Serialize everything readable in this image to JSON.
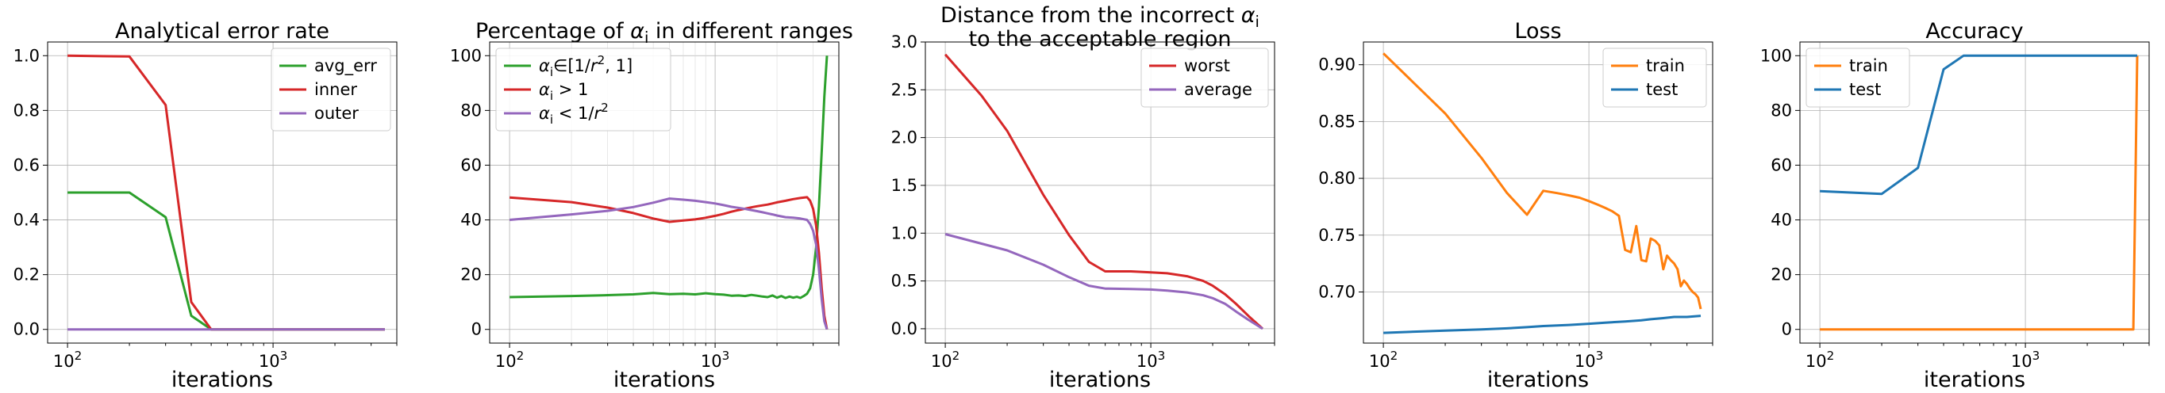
{
  "chart_data": [
    {
      "type": "line",
      "title": "Analytical error rate",
      "xlabel": "iterations",
      "ylabel": "",
      "xscale": "log",
      "xlim": [
        80,
        4000
      ],
      "ylim": [
        -0.05,
        1.05
      ],
      "yticks": [
        0.0,
        0.2,
        0.4,
        0.6,
        0.8,
        1.0
      ],
      "ytick_labels": [
        "0.0",
        "0.2",
        "0.4",
        "0.6",
        "0.8",
        "1.0"
      ],
      "xticks": [
        {
          "value": 100,
          "base": "10",
          "exp": "2"
        },
        {
          "value": 1000,
          "base": "10",
          "exp": "3"
        }
      ],
      "grid": true,
      "legend": {
        "placement": "top-right"
      },
      "series": [
        {
          "name": "avg_err",
          "color": "#2ca02c",
          "x": [
            100,
            200,
            300,
            400,
            500,
            3500
          ],
          "y": [
            0.5,
            0.5,
            0.41,
            0.05,
            0.0,
            0.0
          ]
        },
        {
          "name": "inner",
          "color": "#d62728",
          "x": [
            100,
            200,
            300,
            400,
            500,
            3500
          ],
          "y": [
            1.0,
            0.997,
            0.82,
            0.1,
            0.0,
            0.0
          ]
        },
        {
          "name": "outer",
          "color": "#9467bd",
          "x": [
            100,
            3500
          ],
          "y": [
            0.0,
            0.0
          ]
        }
      ]
    },
    {
      "type": "line",
      "title": "Percentage of αi in different ranges",
      "xlabel": "iterations",
      "ylabel": "",
      "xscale": "log",
      "xlim": [
        80,
        4000
      ],
      "ylim": [
        -5,
        105
      ],
      "yticks": [
        0,
        20,
        40,
        60,
        80,
        100
      ],
      "ytick_labels": [
        "0",
        "20",
        "40",
        "60",
        "80",
        "100"
      ],
      "xticks": [
        {
          "value": 100,
          "base": "10",
          "exp": "2"
        },
        {
          "value": 1000,
          "base": "10",
          "exp": "3"
        }
      ],
      "grid": true,
      "legend": {
        "placement": "top-left"
      },
      "series": [
        {
          "name": "αi∈[1/r², 1]",
          "color": "#2ca02c",
          "x": [
            100,
            200,
            300,
            400,
            500,
            600,
            700,
            800,
            900,
            1000,
            1100,
            1200,
            1300,
            1400,
            1500,
            1600,
            1700,
            1800,
            1900,
            2000,
            2100,
            2200,
            2300,
            2400,
            2500,
            2600,
            2700,
            2800,
            2900,
            3000,
            3100,
            3200,
            3300,
            3400,
            3500
          ],
          "y": [
            11.8,
            12.2,
            12.5,
            12.8,
            13.3,
            12.9,
            13.0,
            12.8,
            13.2,
            12.9,
            12.7,
            12.3,
            12.4,
            12.2,
            12.6,
            12.3,
            12.0,
            11.8,
            12.4,
            11.6,
            12.2,
            11.5,
            12.0,
            11.6,
            11.9,
            11.5,
            12.2,
            13.0,
            15.0,
            20.0,
            30.0,
            45.0,
            65.0,
            85.0,
            100.0
          ]
        },
        {
          "name": "αi > 1",
          "color": "#d62728",
          "x": [
            100,
            200,
            300,
            400,
            500,
            600,
            700,
            800,
            900,
            1000,
            1100,
            1200,
            1300,
            1400,
            1500,
            1600,
            1700,
            1800,
            1900,
            2000,
            2200,
            2400,
            2600,
            2800,
            2900,
            3000,
            3100,
            3200,
            3300,
            3400,
            3500
          ],
          "y": [
            48.2,
            46.5,
            44.5,
            42.5,
            40.5,
            39.3,
            39.8,
            40.2,
            40.8,
            41.5,
            42.2,
            43.0,
            43.6,
            44.1,
            44.6,
            45.0,
            45.3,
            45.6,
            46.0,
            46.4,
            47.0,
            47.6,
            48.0,
            48.3,
            47.0,
            44.0,
            38.0,
            28.0,
            15.0,
            5.0,
            0.0
          ]
        },
        {
          "name": "αi < 1/r²",
          "color": "#9467bd",
          "x": [
            100,
            200,
            300,
            400,
            500,
            600,
            700,
            800,
            900,
            1000,
            1100,
            1200,
            1300,
            1400,
            1500,
            1600,
            1700,
            1800,
            1900,
            2000,
            2200,
            2400,
            2600,
            2800,
            2900,
            3000,
            3100,
            3200,
            3300,
            3400,
            3500
          ],
          "y": [
            40.0,
            42.0,
            43.3,
            44.7,
            46.3,
            47.8,
            47.4,
            47.0,
            46.5,
            46.0,
            45.4,
            44.8,
            44.4,
            44.0,
            43.6,
            43.2,
            42.8,
            42.4,
            42.0,
            41.6,
            41.0,
            40.8,
            40.5,
            40.0,
            38.5,
            36.0,
            31.0,
            22.0,
            11.0,
            3.0,
            0.0
          ]
        }
      ]
    },
    {
      "type": "line",
      "title": "Distance from the incorrect αi to the acceptable region",
      "title_lines": [
        "Distance from the incorrect ",
        "to the acceptable region"
      ],
      "xlabel": "iterations",
      "ylabel": "",
      "xscale": "log",
      "xlim": [
        80,
        4000
      ],
      "ylim": [
        -0.15,
        3.0
      ],
      "yticks": [
        0.0,
        0.5,
        1.0,
        1.5,
        2.0,
        2.5,
        3.0
      ],
      "ytick_labels": [
        "0.0",
        "0.5",
        "1.0",
        "1.5",
        "2.0",
        "2.5",
        "3.0"
      ],
      "xticks": [
        {
          "value": 100,
          "base": "10",
          "exp": "2"
        },
        {
          "value": 1000,
          "base": "10",
          "exp": "3"
        }
      ],
      "grid": true,
      "legend": {
        "placement": "top-right"
      },
      "series": [
        {
          "name": "worst",
          "color": "#d62728",
          "x": [
            100,
            150,
            200,
            300,
            400,
            500,
            600,
            800,
            1000,
            1200,
            1500,
            1800,
            2000,
            2300,
            2600,
            3000,
            3500
          ],
          "y": [
            2.87,
            2.44,
            2.07,
            1.4,
            0.98,
            0.7,
            0.6,
            0.6,
            0.59,
            0.58,
            0.55,
            0.5,
            0.45,
            0.36,
            0.26,
            0.13,
            0.0
          ]
        },
        {
          "name": "average",
          "color": "#9467bd",
          "x": [
            100,
            200,
            300,
            400,
            500,
            600,
            800,
            1000,
            1200,
            1500,
            1800,
            2000,
            2300,
            2600,
            3000,
            3500
          ],
          "y": [
            0.99,
            0.82,
            0.67,
            0.54,
            0.45,
            0.42,
            0.415,
            0.41,
            0.4,
            0.38,
            0.35,
            0.32,
            0.26,
            0.18,
            0.09,
            0.0
          ]
        }
      ]
    },
    {
      "type": "line",
      "title": "Loss",
      "xlabel": "iterations",
      "ylabel": "",
      "xscale": "log",
      "xlim": [
        80,
        4000
      ],
      "ylim": [
        0.655,
        0.92
      ],
      "yticks": [
        0.7,
        0.75,
        0.8,
        0.85,
        0.9
      ],
      "ytick_labels": [
        "0.70",
        "0.75",
        "0.80",
        "0.85",
        "0.90"
      ],
      "xticks": [
        {
          "value": 100,
          "base": "10",
          "exp": "2"
        },
        {
          "value": 1000,
          "base": "10",
          "exp": "3"
        }
      ],
      "grid": true,
      "legend": {
        "placement": "top-right"
      },
      "series": [
        {
          "name": "train",
          "color": "#ff7f0e",
          "x": [
            100,
            200,
            300,
            400,
            500,
            600,
            700,
            800,
            900,
            1000,
            1100,
            1200,
            1300,
            1400,
            1500,
            1600,
            1700,
            1800,
            1900,
            2000,
            2100,
            2200,
            2300,
            2400,
            2500,
            2600,
            2700,
            2800,
            2900,
            3000,
            3100,
            3200,
            3300,
            3400,
            3500
          ],
          "y": [
            0.91,
            0.857,
            0.818,
            0.787,
            0.768,
            0.789,
            0.787,
            0.785,
            0.783,
            0.78,
            0.777,
            0.774,
            0.771,
            0.767,
            0.737,
            0.735,
            0.758,
            0.728,
            0.727,
            0.747,
            0.745,
            0.741,
            0.72,
            0.732,
            0.728,
            0.725,
            0.72,
            0.705,
            0.71,
            0.707,
            0.703,
            0.7,
            0.698,
            0.695,
            0.685
          ]
        },
        {
          "name": "test",
          "color": "#1f77b4",
          "x": [
            100,
            200,
            300,
            400,
            500,
            600,
            800,
            1000,
            1200,
            1500,
            1800,
            2000,
            2300,
            2600,
            3000,
            3500
          ],
          "y": [
            0.664,
            0.666,
            0.667,
            0.668,
            0.669,
            0.67,
            0.671,
            0.672,
            0.673,
            0.674,
            0.675,
            0.676,
            0.677,
            0.678,
            0.678,
            0.679
          ]
        }
      ]
    },
    {
      "type": "line",
      "title": "Accuracy",
      "xlabel": "iterations",
      "ylabel": "",
      "xscale": "log",
      "xlim": [
        80,
        4000
      ],
      "ylim": [
        -5,
        105
      ],
      "yticks": [
        0,
        20,
        40,
        60,
        80,
        100
      ],
      "ytick_labels": [
        "0",
        "20",
        "40",
        "60",
        "80",
        "100"
      ],
      "xticks": [
        {
          "value": 100,
          "base": "10",
          "exp": "2"
        },
        {
          "value": 1000,
          "base": "10",
          "exp": "3"
        }
      ],
      "grid": true,
      "legend": {
        "placement": "top-left"
      },
      "series": [
        {
          "name": "train",
          "color": "#ff7f0e",
          "x": [
            100,
            3350,
            3500
          ],
          "y": [
            0,
            0,
            100
          ]
        },
        {
          "name": "test",
          "color": "#1f77b4",
          "x": [
            100,
            200,
            300,
            400,
            500,
            3500
          ],
          "y": [
            50.5,
            49.5,
            59.0,
            95.0,
            100,
            100
          ]
        }
      ]
    }
  ]
}
